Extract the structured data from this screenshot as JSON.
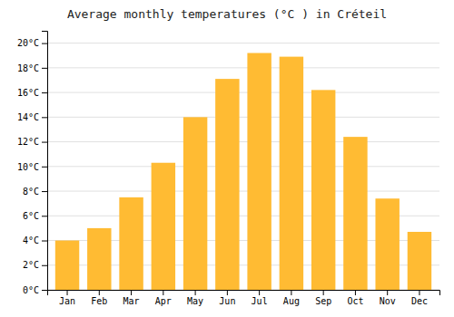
{
  "chart_data": {
    "type": "bar",
    "title": "Average monthly temperatures (°C ) in Créteil",
    "categories": [
      "Jan",
      "Feb",
      "Mar",
      "Apr",
      "May",
      "Jun",
      "Jul",
      "Aug",
      "Sep",
      "Oct",
      "Nov",
      "Dec"
    ],
    "values": [
      4.0,
      5.0,
      7.5,
      10.3,
      14.0,
      17.1,
      19.2,
      18.9,
      16.2,
      12.4,
      7.4,
      4.7
    ],
    "color": "#FFBB33",
    "ylim": [
      0,
      21
    ],
    "yticks": [
      {
        "value": 0,
        "label": "0°C"
      },
      {
        "value": 2,
        "label": "2°C"
      },
      {
        "value": 4,
        "label": "4°C"
      },
      {
        "value": 6,
        "label": "6°C"
      },
      {
        "value": 8,
        "label": "8°C"
      },
      {
        "value": 10,
        "label": "10°C"
      },
      {
        "value": 12,
        "label": "12°C"
      },
      {
        "value": 14,
        "label": "14°C"
      },
      {
        "value": 16,
        "label": "16°C"
      },
      {
        "value": 18,
        "label": "18°C"
      },
      {
        "value": 20,
        "label": "20°C"
      }
    ],
    "grid": true
  }
}
